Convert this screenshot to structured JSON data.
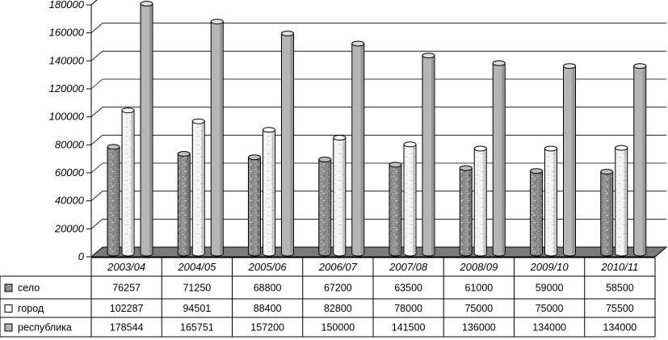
{
  "chart_data": {
    "type": "bar",
    "style": "3d-cylinder",
    "categories": [
      "2003/04",
      "2004/05",
      "2005/06",
      "2006/07",
      "2007/08",
      "2008/09",
      "2009/10",
      "2010/11"
    ],
    "series": [
      {
        "name": "село",
        "values": [
          76257,
          71250,
          68800,
          67200,
          63500,
          61000,
          59000,
          58500
        ],
        "color": "#8c8c8c",
        "pattern": "speckled"
      },
      {
        "name": "город",
        "values": [
          102287,
          94501,
          88400,
          82800,
          78000,
          75000,
          75000,
          75500
        ],
        "color": "#ffffff",
        "pattern": "speckled-light"
      },
      {
        "name": "республика",
        "values": [
          178544,
          165751,
          157200,
          150000,
          141500,
          136000,
          134000,
          134000
        ],
        "color": "#bdbdbd",
        "pattern": "solid"
      }
    ],
    "yticks": [
      "0",
      "20000",
      "40000",
      "60000",
      "80000",
      "100000",
      "120000",
      "140000",
      "160000",
      "180000"
    ],
    "ylim": [
      0,
      180000
    ],
    "grid": true,
    "data_table": true,
    "title": "",
    "xlabel": "",
    "ylabel": ""
  }
}
